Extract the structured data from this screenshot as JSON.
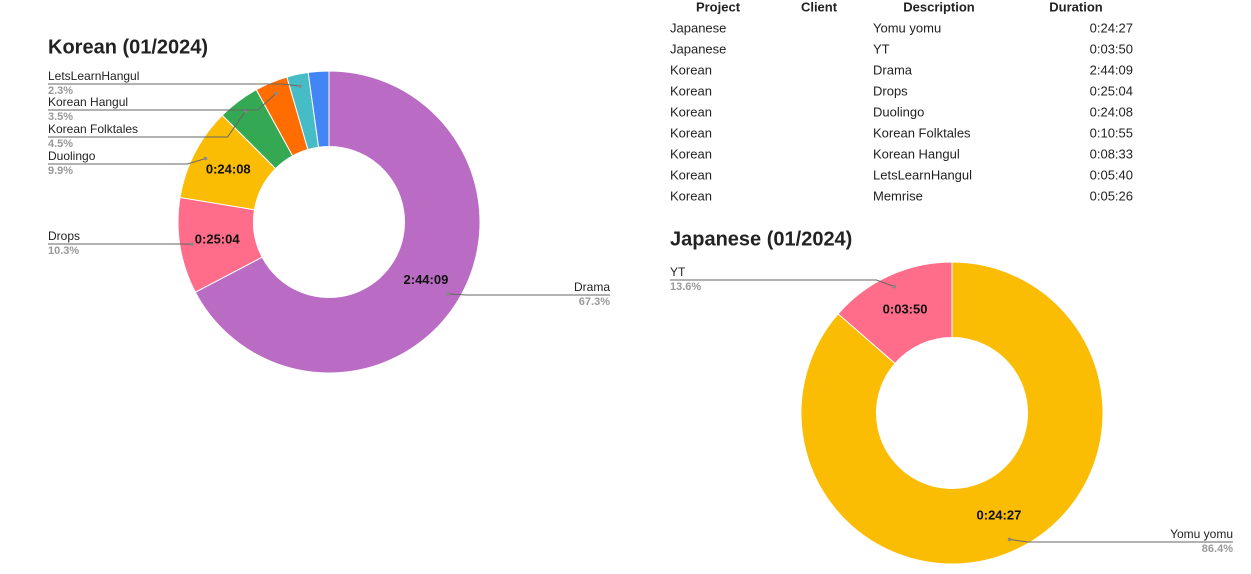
{
  "chart_data": [
    {
      "type": "pie",
      "donut": true,
      "title": "Korean (01/2024)",
      "title_color": "#b967c7",
      "categories": [
        "Drama",
        "Drops",
        "Duolingo",
        "Korean Folktales",
        "Korean Hangul",
        "LetsLearnHangul",
        null
      ],
      "values": [
        67.3,
        10.3,
        9.9,
        4.5,
        3.5,
        2.3,
        2.2
      ],
      "value_labels": [
        "67.3%",
        "10.3%",
        "9.9%",
        "4.5%",
        "3.5%",
        "2.3%",
        null
      ],
      "inner_labels": [
        "2:44:09",
        "0:25:04",
        "0:24:08",
        null,
        null,
        null,
        null
      ],
      "colors": [
        "#ba6bc3",
        "#ff6d8a",
        "#fbbc04",
        "#34a853",
        "#ff6d01",
        "#46bdc6",
        "#4285f4"
      ]
    },
    {
      "type": "pie",
      "donut": true,
      "title": "Japanese (01/2024)",
      "title_color": "#f4b400",
      "categories": [
        "Yomu yomu",
        "YT"
      ],
      "values": [
        86.4,
        13.6
      ],
      "value_labels": [
        "86.4%",
        "13.6%"
      ],
      "inner_labels": [
        "0:24:27",
        "0:03:50"
      ],
      "colors": [
        "#fbbc04",
        "#ff6d8a"
      ]
    }
  ],
  "table": {
    "headers": [
      "Project",
      "Client",
      "Description",
      "Duration"
    ],
    "rows": [
      {
        "project": "Japanese",
        "description": "Yomu yomu",
        "duration": "0:24:27"
      },
      {
        "project": "Japanese",
        "description": "YT",
        "duration": "0:03:50"
      },
      {
        "project": "Korean",
        "description": "Drama",
        "duration": "2:44:09"
      },
      {
        "project": "Korean",
        "description": "Drops",
        "duration": "0:25:04"
      },
      {
        "project": "Korean",
        "description": "Duolingo",
        "duration": "0:24:08"
      },
      {
        "project": "Korean",
        "description": "Korean Folktales",
        "duration": "0:10:55"
      },
      {
        "project": "Korean",
        "description": "Korean Hangul",
        "duration": "0:08:33"
      },
      {
        "project": "Korean",
        "description": "LetsLearnHangul",
        "duration": "0:05:40"
      },
      {
        "project": "Korean",
        "description": "Memrise",
        "duration": "0:05:26"
      }
    ]
  }
}
